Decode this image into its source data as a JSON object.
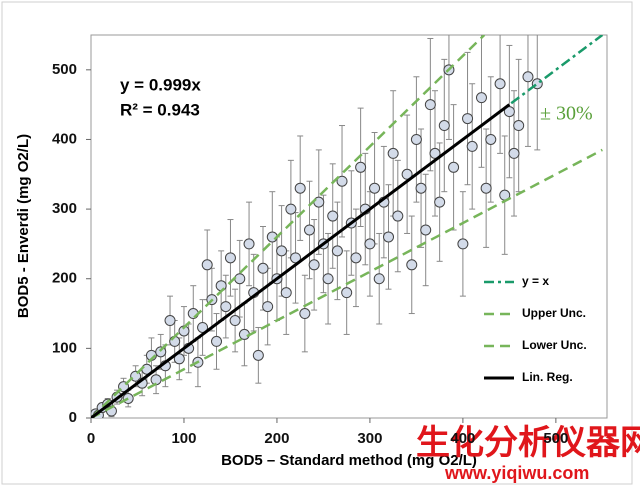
{
  "chart_data": {
    "type": "scatter",
    "x_label": "BOD5 – Standard method (mg O2/L)",
    "y_label": "BOD5 - Enverdi (mg O2/L)",
    "annotations": {
      "equation": "y = 0.999x",
      "r2": "R² = 0.943",
      "band": "± 30%",
      "band_color": "#5aa03a"
    },
    "xlim": [
      0,
      555
    ],
    "ylim": [
      0,
      550
    ],
    "xticks": [
      0,
      100,
      200,
      300,
      400,
      500
    ],
    "yticks": [
      0,
      100,
      200,
      300,
      400,
      500
    ],
    "points": {
      "color": "#d3dbe9",
      "error_color": "#888888",
      "x": [
        2,
        5,
        8,
        12,
        18,
        22,
        28,
        35,
        40,
        48,
        55,
        60,
        65,
        70,
        75,
        80,
        85,
        90,
        95,
        100,
        105,
        110,
        115,
        120,
        125,
        130,
        135,
        140,
        145,
        150,
        155,
        160,
        165,
        170,
        175,
        180,
        185,
        190,
        195,
        200,
        205,
        210,
        215,
        220,
        225,
        230,
        235,
        240,
        245,
        250,
        255,
        260,
        265,
        270,
        275,
        280,
        285,
        290,
        295,
        300,
        305,
        310,
        315,
        320,
        325,
        330,
        340,
        345,
        350,
        355,
        360,
        365,
        370,
        375,
        380,
        385,
        390,
        400,
        405,
        410,
        420,
        425,
        430,
        440,
        445,
        450,
        455,
        460,
        470,
        480
      ],
      "values": [
        3,
        6,
        4,
        15,
        20,
        10,
        30,
        45,
        28,
        60,
        50,
        70,
        90,
        55,
        95,
        75,
        140,
        110,
        85,
        125,
        100,
        150,
        80,
        130,
        220,
        170,
        110,
        190,
        160,
        230,
        140,
        200,
        120,
        250,
        180,
        90,
        215,
        160,
        260,
        200,
        240,
        180,
        300,
        230,
        330,
        150,
        270,
        220,
        310,
        250,
        200,
        290,
        240,
        340,
        180,
        280,
        230,
        360,
        300,
        250,
        330,
        200,
        310,
        260,
        380,
        290,
        350,
        220,
        400,
        330,
        270,
        450,
        380,
        310,
        420,
        500,
        360,
        250,
        430,
        390,
        460,
        330,
        400,
        480,
        320,
        440,
        380,
        420,
        490,
        480
      ],
      "errors": [
        3,
        4,
        5,
        6,
        8,
        8,
        10,
        12,
        12,
        15,
        18,
        20,
        25,
        20,
        25,
        30,
        35,
        30,
        30,
        35,
        35,
        40,
        35,
        40,
        50,
        45,
        40,
        50,
        45,
        55,
        45,
        55,
        45,
        60,
        55,
        40,
        60,
        55,
        65,
        60,
        65,
        60,
        70,
        65,
        75,
        55,
        70,
        65,
        75,
        70,
        65,
        75,
        70,
        80,
        60,
        75,
        70,
        85,
        80,
        75,
        80,
        65,
        80,
        75,
        90,
        80,
        85,
        70,
        90,
        85,
        80,
        95,
        90,
        85,
        95,
        100,
        90,
        75,
        95,
        90,
        100,
        85,
        90,
        100,
        85,
        95,
        90,
        95,
        100,
        95
      ]
    },
    "series": [
      {
        "name": "y = x",
        "color": "#1a9a6a",
        "style": "dash-dot",
        "x": [
          0,
          550
        ],
        "values": [
          0,
          550
        ]
      },
      {
        "name": "Upper Unc.",
        "color": "#77b55a",
        "style": "dash",
        "x": [
          0,
          423
        ],
        "values": [
          0,
          550
        ]
      },
      {
        "name": "Lower Unc.",
        "color": "#77b55a",
        "style": "dash",
        "x": [
          0,
          550
        ],
        "values": [
          0,
          385
        ]
      },
      {
        "name": "Lin. Reg.",
        "color": "#000000",
        "style": "solid",
        "x": [
          0,
          450
        ],
        "values": [
          0,
          450
        ]
      }
    ],
    "legend": "lower-right"
  },
  "watermark": {
    "title": "生化分析仪器网",
    "url": "www.yiqiwu.com",
    "color": "#e0161b"
  }
}
